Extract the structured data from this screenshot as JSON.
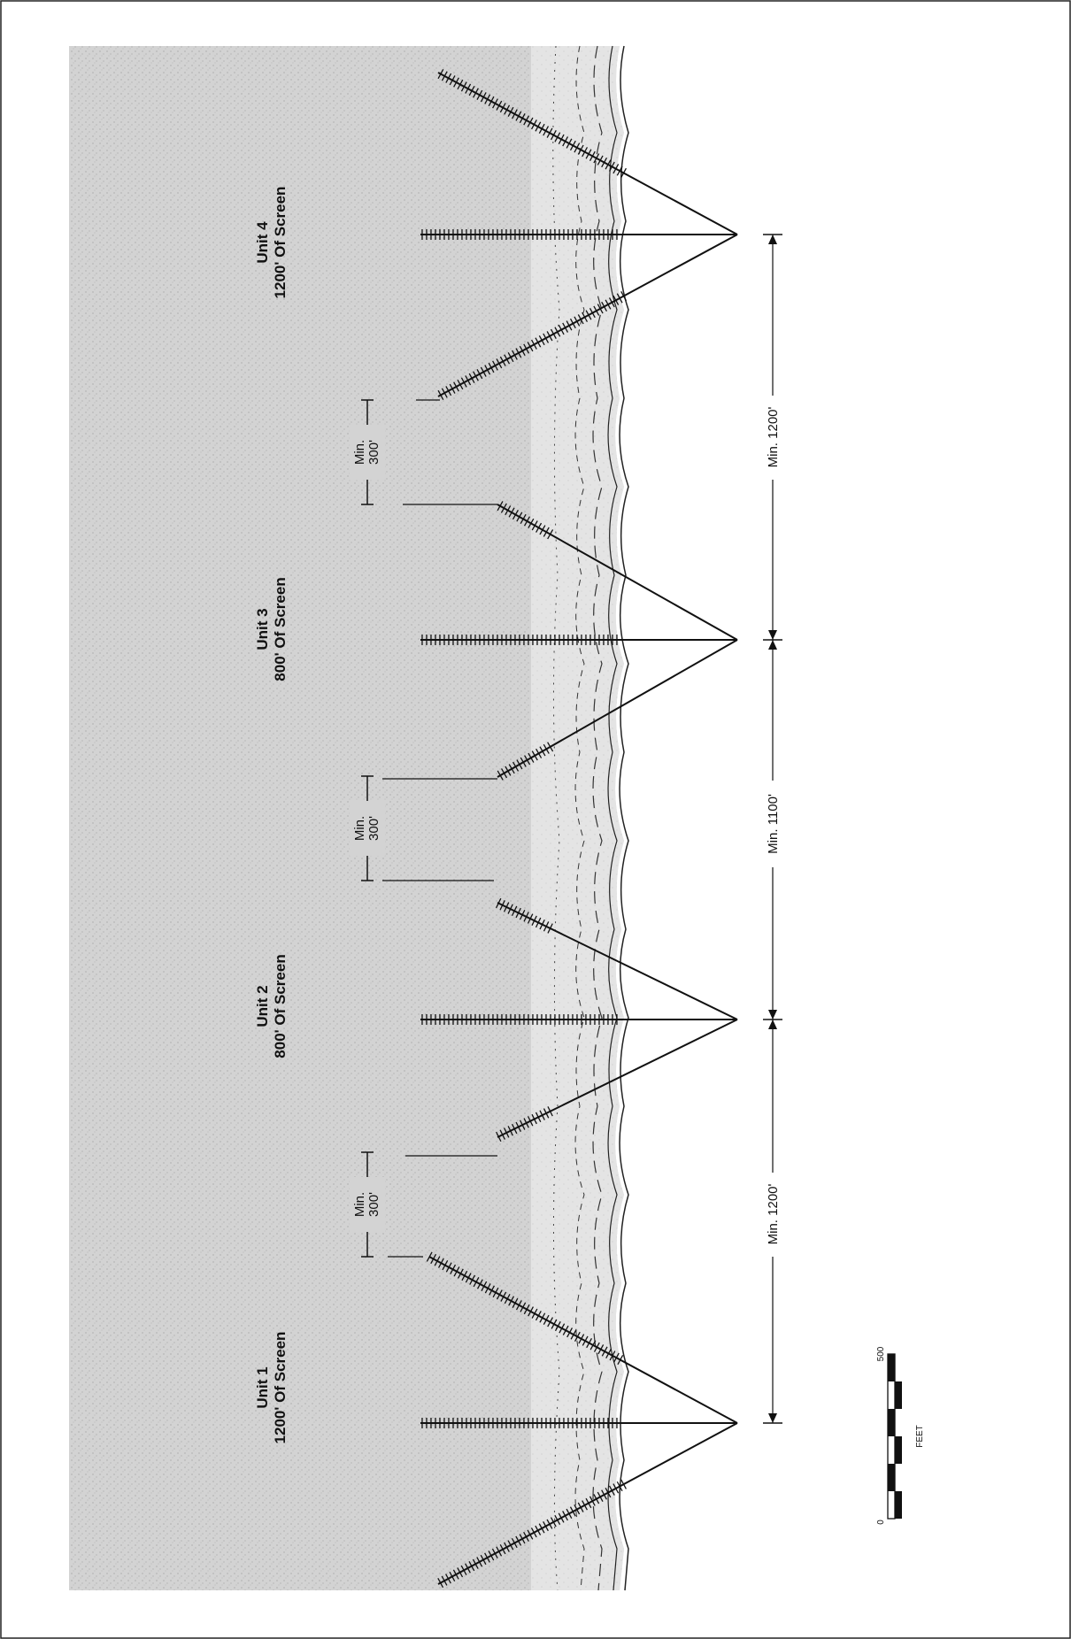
{
  "units": [
    {
      "title": "Unit 1",
      "subtitle": "1200' Of Screen"
    },
    {
      "title": "Unit 2",
      "subtitle": "800' Of Screen"
    },
    {
      "title": "Unit 3",
      "subtitle": "800' Of Screen"
    },
    {
      "title": "Unit 4",
      "subtitle": "1200' Of Screen"
    }
  ],
  "spacing": {
    "min_label": "Min.",
    "value": "300'"
  },
  "unit_spacing": [
    "Min. 1200'",
    "Min. 1100'",
    "Min. 1200'"
  ],
  "scale_bar": {
    "min": "0",
    "max": "500",
    "unit": "FEET"
  },
  "colors": {
    "land": "#d2d2d2",
    "water": "#f1f1f1",
    "ink": "#111111"
  }
}
